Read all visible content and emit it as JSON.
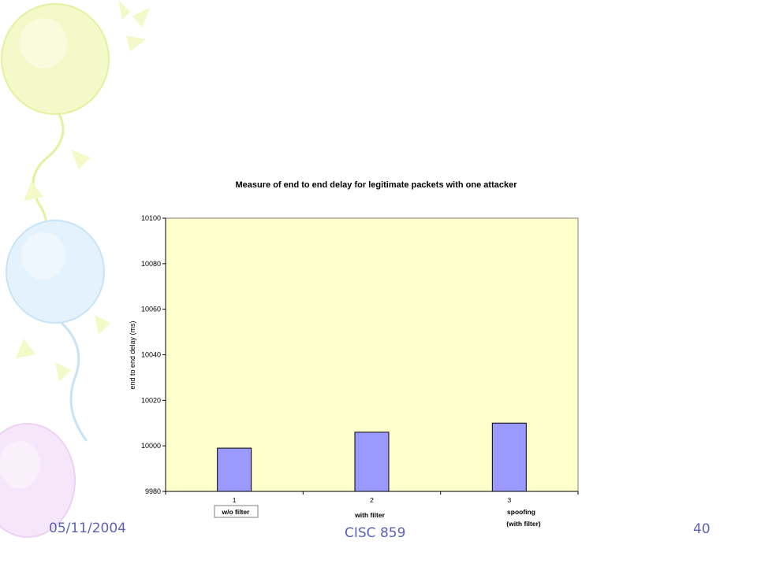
{
  "chart_data": {
    "type": "bar",
    "title": "Measure of end to end delay for legitimate packets with one attacker",
    "ylabel": "end to end delay (ms)",
    "xlabel": "",
    "categories": [
      "1",
      "2",
      "3"
    ],
    "category_annotations": [
      "w/o filter",
      "with filter",
      "spoofing",
      "(with filter)"
    ],
    "values": [
      9999,
      10006,
      10010
    ],
    "ylim": [
      9980,
      10100
    ],
    "yticks": [
      9980,
      10000,
      10020,
      10040,
      10060,
      10080,
      10100
    ],
    "grid": false,
    "legend": "none",
    "bar_color": "#9999ff",
    "plot_background": "#ffffcc"
  },
  "footer": {
    "date": "05/11/2004",
    "course": "CISC 859",
    "page": "40"
  },
  "colors": {
    "footer_text": "#5b62b8"
  }
}
